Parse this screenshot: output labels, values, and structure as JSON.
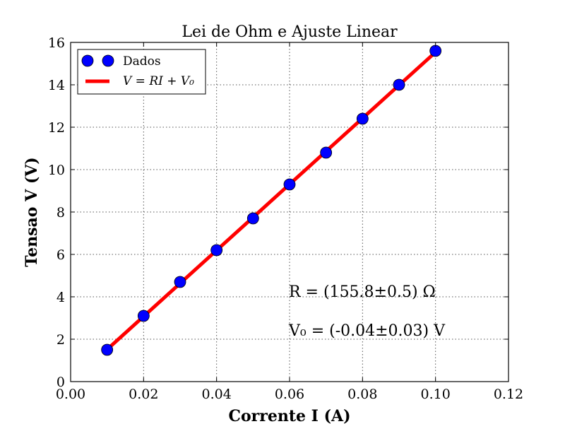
{
  "chart_data": {
    "type": "scatter",
    "title": "Lei de Ohm e Ajuste Linear",
    "xlabel": "Corrente I (A)",
    "ylabel": "Tensao V (V)",
    "xlim": [
      0.0,
      0.12
    ],
    "ylim": [
      0,
      16
    ],
    "xticks": [
      "0.00",
      "0.02",
      "0.04",
      "0.06",
      "0.08",
      "0.10",
      "0.12"
    ],
    "yticks": [
      "0",
      "2",
      "4",
      "6",
      "8",
      "10",
      "12",
      "14",
      "16"
    ],
    "grid": true,
    "legend_position": "top-left",
    "series": [
      {
        "name": "Dados",
        "kind": "scatter",
        "color": "#0000ff",
        "x": [
          0.01,
          0.02,
          0.03,
          0.04,
          0.05,
          0.06,
          0.07,
          0.08,
          0.09,
          0.1
        ],
        "y": [
          1.5,
          3.1,
          4.7,
          6.2,
          7.7,
          9.3,
          10.8,
          12.4,
          14.0,
          15.6
        ]
      },
      {
        "name": "V = RI + V₀",
        "kind": "line",
        "color": "#ff0000",
        "x": [
          0.01,
          0.1
        ],
        "y": [
          1.518,
          15.54
        ]
      }
    ],
    "annotations": [
      "R = (155.8±0.5) Ω",
      "V₀ = (-0.04±0.03) V"
    ]
  }
}
